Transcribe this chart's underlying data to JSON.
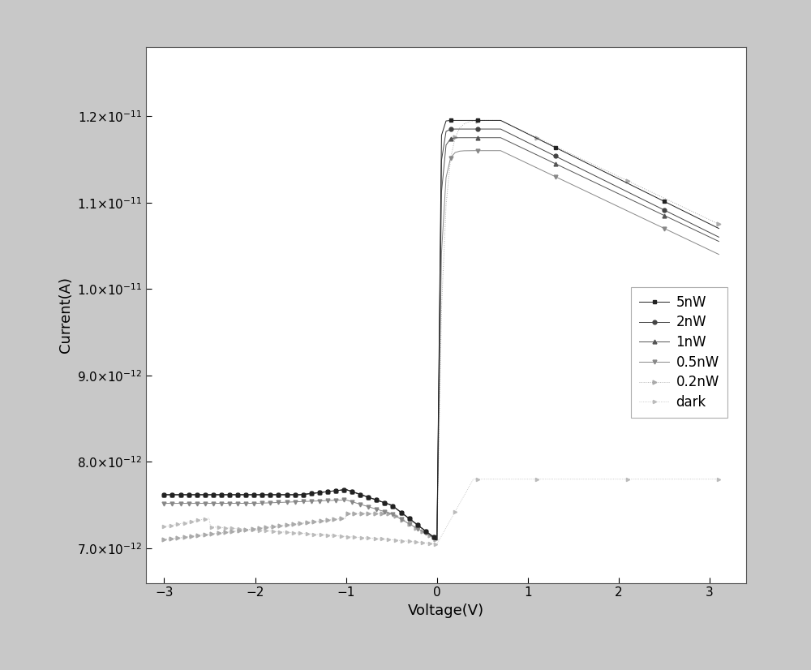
{
  "title": "",
  "xlabel": "Voltage(V)",
  "ylabel": "Current(A)",
  "xlim": [
    -3.2,
    3.4
  ],
  "ylim": [
    6.6e-12,
    1.28e-11
  ],
  "yticks": [
    7e-12,
    8e-12,
    9e-12,
    1e-11,
    1.1e-11,
    1.2e-11
  ],
  "xticks": [
    -3,
    -2,
    -1,
    0,
    1,
    2,
    3
  ],
  "background_color": "#ffffff",
  "outer_background": "#e8e8e8",
  "legend_labels": [
    "5nW",
    "2nW",
    "1nW",
    "0.5nW",
    "0.2nW",
    "dark"
  ],
  "series": {
    "5nW": {
      "color": "#222222",
      "marker": "s",
      "markersize": 3.5,
      "linestyle": "-",
      "linewidth": 0.7,
      "zorder": 6
    },
    "2nW": {
      "color": "#444444",
      "marker": "o",
      "markersize": 3.5,
      "linestyle": "-",
      "linewidth": 0.7,
      "zorder": 5
    },
    "1nW": {
      "color": "#555555",
      "marker": "^",
      "markersize": 3.5,
      "linestyle": "-",
      "linewidth": 0.7,
      "zorder": 4
    },
    "0.5nW": {
      "color": "#888888",
      "marker": "v",
      "markersize": 3.5,
      "linestyle": "-",
      "linewidth": 0.7,
      "zorder": 3
    },
    "0.2nW": {
      "color": "#aaaaaa",
      "marker": ">",
      "markersize": 3.5,
      "linestyle": ":",
      "linewidth": 0.7,
      "zorder": 2
    },
    "dark": {
      "color": "#bbbbbb",
      "marker": ">",
      "markersize": 3,
      "linestyle": ":",
      "linewidth": 0.6,
      "zorder": 1
    }
  }
}
